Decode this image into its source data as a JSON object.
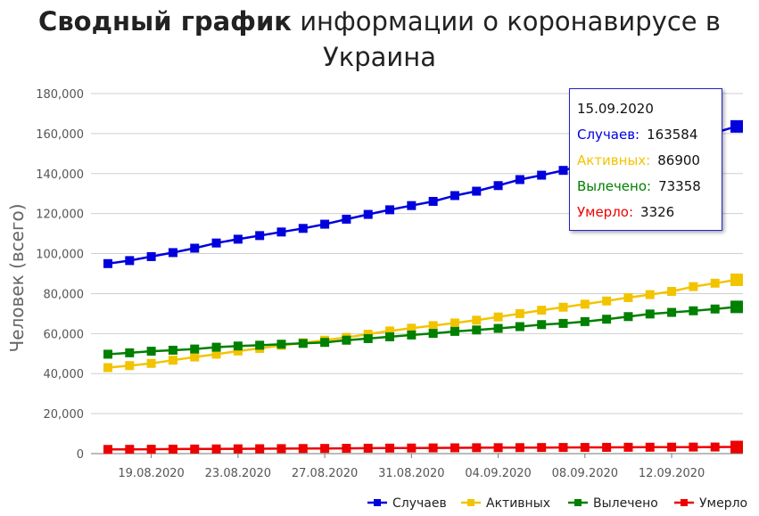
{
  "title_bold": "Сводный график",
  "title_rest": "информации о коронавирусе в Украина",
  "tooltip": {
    "date": "15.09.2020",
    "rows": [
      {
        "label": "Случаев:",
        "value": "163584",
        "color": "#0000dd"
      },
      {
        "label": "Активных:",
        "value": "86900",
        "color": "#f2c400"
      },
      {
        "label": "Вылечено:",
        "value": "73358",
        "color": "#008000"
      },
      {
        "label": "Умерло:",
        "value": "3326",
        "color": "#ee0000"
      }
    ]
  },
  "chart_data": {
    "type": "line",
    "ylabel": "Человек (всего)",
    "xlabel": "",
    "ylim": [
      0,
      180000
    ],
    "yticks": [
      "0",
      "20,000",
      "40,000",
      "60,000",
      "80,000",
      "100,000",
      "120,000",
      "140,000",
      "160,000",
      "180,000"
    ],
    "xticks": [
      "19.08.2020",
      "23.08.2020",
      "27.08.2020",
      "31.08.2020",
      "04.09.2020",
      "08.09.2020",
      "12.09.2020"
    ],
    "grid": "horizontal",
    "legend_position": "bottom-right",
    "x": [
      "17.08.2020",
      "18.08.2020",
      "19.08.2020",
      "20.08.2020",
      "21.08.2020",
      "22.08.2020",
      "23.08.2020",
      "24.08.2020",
      "25.08.2020",
      "26.08.2020",
      "27.08.2020",
      "28.08.2020",
      "29.08.2020",
      "30.08.2020",
      "31.08.2020",
      "01.09.2020",
      "02.09.2020",
      "03.09.2020",
      "04.09.2020",
      "05.09.2020",
      "06.09.2020",
      "07.09.2020",
      "08.09.2020",
      "09.09.2020",
      "10.09.2020",
      "11.09.2020",
      "12.09.2020",
      "13.09.2020",
      "14.09.2020",
      "15.09.2020"
    ],
    "series": [
      {
        "name": "Случаев",
        "color": "#0000dd",
        "values": [
          95000,
          96500,
          98500,
          100500,
          102700,
          105300,
          107200,
          109000,
          110800,
          112600,
          114700,
          117200,
          119600,
          121900,
          124000,
          126100,
          129000,
          131200,
          134000,
          137000,
          139200,
          141600,
          144300,
          147000,
          149600,
          152000,
          155300,
          158000,
          160500,
          163584
        ]
      },
      {
        "name": "Активных",
        "color": "#f2c400",
        "values": [
          43000,
          44000,
          45100,
          46700,
          48300,
          49700,
          51300,
          52600,
          54100,
          55400,
          56700,
          58100,
          59700,
          61300,
          62700,
          64000,
          65300,
          66700,
          68300,
          70000,
          71700,
          73200,
          74700,
          76300,
          78000,
          79500,
          81100,
          83500,
          85200,
          86900
        ]
      },
      {
        "name": "Вылечено",
        "color": "#008000",
        "values": [
          49700,
          50400,
          51200,
          51700,
          52300,
          53200,
          53800,
          54200,
          54700,
          55100,
          55600,
          56700,
          57500,
          58400,
          59300,
          60100,
          61100,
          61800,
          62600,
          63500,
          64500,
          65100,
          66000,
          67200,
          68500,
          69800,
          70600,
          71400,
          72300,
          73358
        ]
      },
      {
        "name": "Умерло",
        "color": "#ee0000",
        "values": [
          2100,
          2150,
          2200,
          2250,
          2300,
          2350,
          2400,
          2450,
          2500,
          2550,
          2600,
          2650,
          2700,
          2750,
          2800,
          2850,
          2900,
          2950,
          2980,
          3000,
          3050,
          3080,
          3100,
          3130,
          3170,
          3200,
          3230,
          3270,
          3300,
          3326
        ]
      }
    ]
  }
}
